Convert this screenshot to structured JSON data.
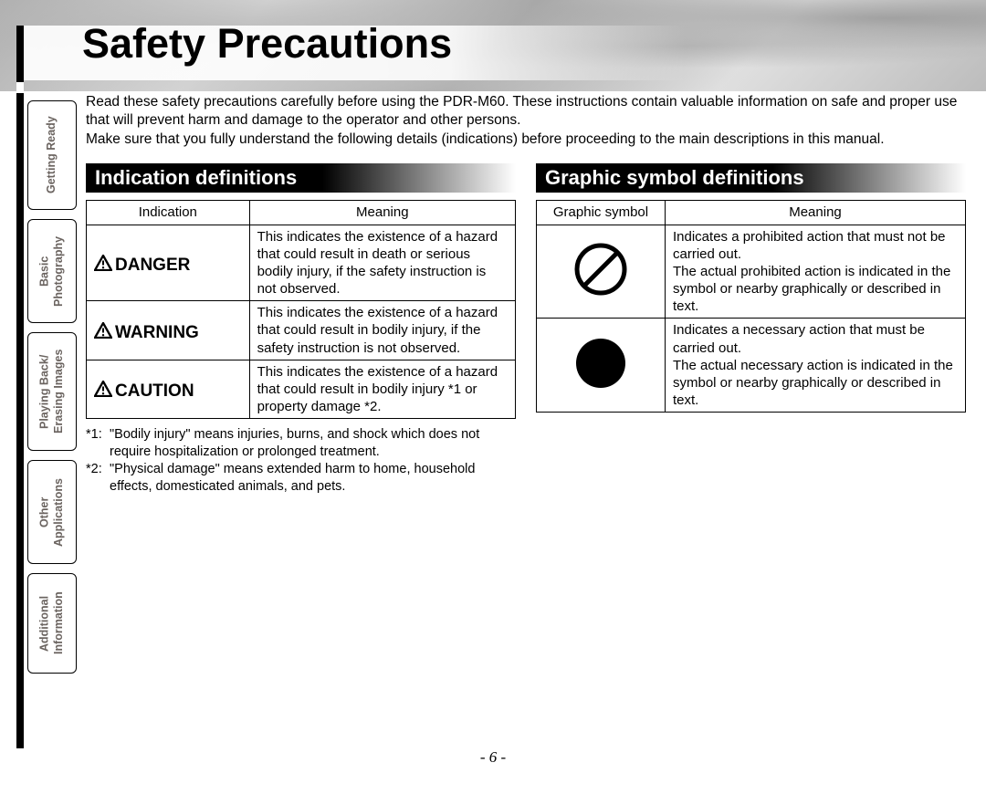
{
  "page_title": "Safety Precautions",
  "intro_p1": "Read these safety precautions carefully before using the PDR-M60. These instructions contain valuable information on safe and proper use that will prevent harm and damage to the operator and other persons.",
  "intro_p2": "Make sure that you fully understand the following details (indications) before proceeding to the main descriptions in this manual.",
  "tabs": [
    "Getting Ready",
    "Basic\nPhotography",
    "Playing Back/\nErasing Images",
    "Other\nApplications",
    "Additional\nInformation"
  ],
  "sections": {
    "indication": {
      "header": "Indication definitions",
      "th1": "Indication",
      "th2": "Meaning",
      "rows": [
        {
          "label": "DANGER",
          "meaning": "This indicates the existence of a hazard that could result in death or serious bodily injury, if the safety instruction is not observed."
        },
        {
          "label": "WARNING",
          "meaning": "This indicates the existence of a hazard that could result in bodily injury, if the safety instruction is not observed."
        },
        {
          "label": "CAUTION",
          "meaning": "This indicates the existence of a hazard that could result in bodily injury *1 or property damage *2."
        }
      ],
      "footnotes": [
        {
          "label": "*1:",
          "text": "\"Bodily injury\" means injuries, burns, and shock which does not require hospitalization or prolonged treatment."
        },
        {
          "label": "*2:",
          "text": "\"Physical damage\" means extended harm to home, household effects, domesticated animals, and pets."
        }
      ]
    },
    "graphic": {
      "header": "Graphic symbol definitions",
      "th1": "Graphic symbol",
      "th2": "Meaning",
      "rows": [
        {
          "symbol": "prohibit",
          "meaning": "Indicates a prohibited action that must not be carried out.\nThe actual prohibited action is indicated in the symbol or nearby graphically or described in text."
        },
        {
          "symbol": "mandatory",
          "meaning": "Indicates a necessary action that must be carried out.\nThe actual necessary action is indicated in the symbol or nearby graphically or described in text."
        }
      ]
    }
  },
  "page_number": "- 6 -"
}
